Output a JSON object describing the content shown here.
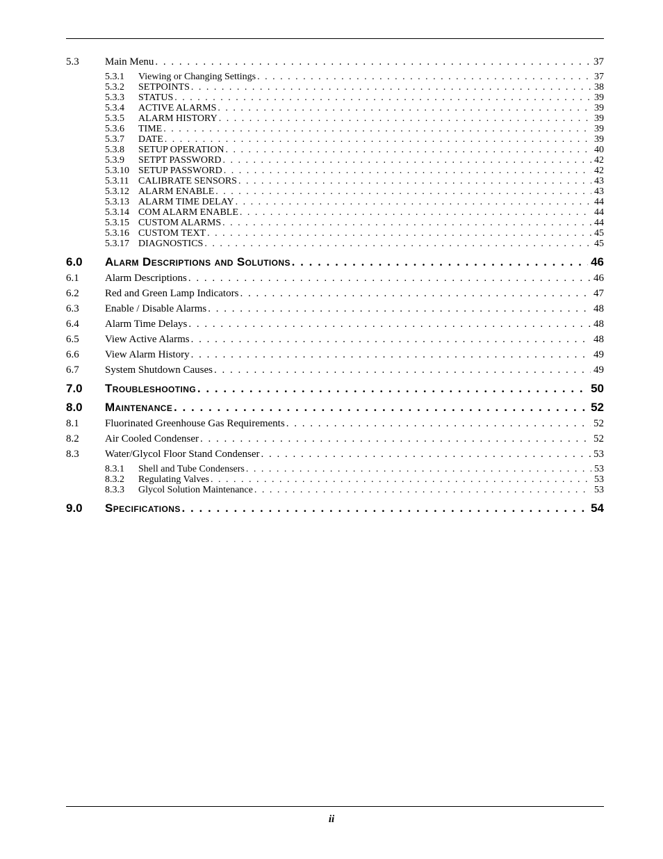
{
  "page_number_label": "ii",
  "leader_char": ". . . . . . . . . . . . . . . . . . . . . . . . . . . . . . . . . . . . . . . . . . . . . . . . . . . . . . . . . . . . . . . . . . . . . . . . . . . . . . . . . . . . . . . . . . . . . . . . . . . . . . . . . . . . . . . . . . . . . . . . . . . . . . . . . . . . . . . . . . . . . . .",
  "toc": [
    {
      "level": 2,
      "num": "5.3",
      "title": "Main Menu",
      "page": "37"
    },
    {
      "level": 3,
      "num": "5.3.1",
      "title": "Viewing or Changing Settings",
      "page": "37"
    },
    {
      "level": 3,
      "num": "5.3.2",
      "title": "SETPOINTS",
      "page": "38"
    },
    {
      "level": 3,
      "num": "5.3.3",
      "title": "STATUS",
      "page": "39"
    },
    {
      "level": 3,
      "num": "5.3.4",
      "title": "ACTIVE ALARMS",
      "page": "39"
    },
    {
      "level": 3,
      "num": "5.3.5",
      "title": "ALARM HISTORY",
      "page": "39"
    },
    {
      "level": 3,
      "num": "5.3.6",
      "title": "TIME",
      "page": "39"
    },
    {
      "level": 3,
      "num": "5.3.7",
      "title": "DATE",
      "page": "39"
    },
    {
      "level": 3,
      "num": "5.3.8",
      "title": "SETUP OPERATION",
      "page": "40"
    },
    {
      "level": 3,
      "num": "5.3.9",
      "title": "SETPT PASSWORD",
      "page": "42"
    },
    {
      "level": 3,
      "num": "5.3.10",
      "title": "SETUP PASSWORD",
      "page": "42"
    },
    {
      "level": 3,
      "num": "5.3.11",
      "title": "CALIBRATE SENSORS",
      "page": "43"
    },
    {
      "level": 3,
      "num": "5.3.12",
      "title": "ALARM ENABLE",
      "page": "43"
    },
    {
      "level": 3,
      "num": "5.3.13",
      "title": "ALARM TIME DELAY",
      "page": "44"
    },
    {
      "level": 3,
      "num": "5.3.14",
      "title": "COM ALARM ENABLE",
      "page": "44"
    },
    {
      "level": 3,
      "num": "5.3.15",
      "title": "CUSTOM ALARMS",
      "page": "44"
    },
    {
      "level": 3,
      "num": "5.3.16",
      "title": "CUSTOM TEXT",
      "page": "45"
    },
    {
      "level": 3,
      "num": "5.3.17",
      "title": "DIAGNOSTICS",
      "page": "45"
    },
    {
      "level": 1,
      "num": "6.0",
      "title": "Alarm Descriptions and Solutions",
      "page": "46"
    },
    {
      "level": 2,
      "num": "6.1",
      "title": "Alarm Descriptions",
      "page": "46"
    },
    {
      "level": 2,
      "num": "6.2",
      "title": "Red and Green Lamp Indicators",
      "page": "47"
    },
    {
      "level": 2,
      "num": "6.3",
      "title": "Enable / Disable Alarms",
      "page": "48"
    },
    {
      "level": 2,
      "num": "6.4",
      "title": "Alarm Time Delays",
      "page": "48"
    },
    {
      "level": 2,
      "num": "6.5",
      "title": "View Active Alarms",
      "page": "48"
    },
    {
      "level": 2,
      "num": "6.6",
      "title": "View Alarm History",
      "page": "49"
    },
    {
      "level": 2,
      "num": "6.7",
      "title": "System Shutdown Causes",
      "page": "49"
    },
    {
      "level": 1,
      "num": "7.0",
      "title": "Troubleshooting",
      "page": "50"
    },
    {
      "level": 1,
      "num": "8.0",
      "title": "Maintenance",
      "page": "52"
    },
    {
      "level": 2,
      "num": "8.1",
      "title": "Fluorinated Greenhouse Gas Requirements",
      "page": "52"
    },
    {
      "level": 2,
      "num": "8.2",
      "title": "Air Cooled Condenser",
      "page": "52"
    },
    {
      "level": 2,
      "num": "8.3",
      "title": "Water/Glycol Floor Stand Condenser",
      "page": "53"
    },
    {
      "level": 3,
      "num": "8.3.1",
      "title": "Shell and Tube Condensers",
      "page": "53"
    },
    {
      "level": 3,
      "num": "8.3.2",
      "title": "Regulating Valves",
      "page": "53"
    },
    {
      "level": 3,
      "num": "8.3.3",
      "title": "Glycol Solution Maintenance",
      "page": "53"
    },
    {
      "level": 1,
      "num": "9.0",
      "title": "Specifications",
      "page": "54"
    }
  ]
}
